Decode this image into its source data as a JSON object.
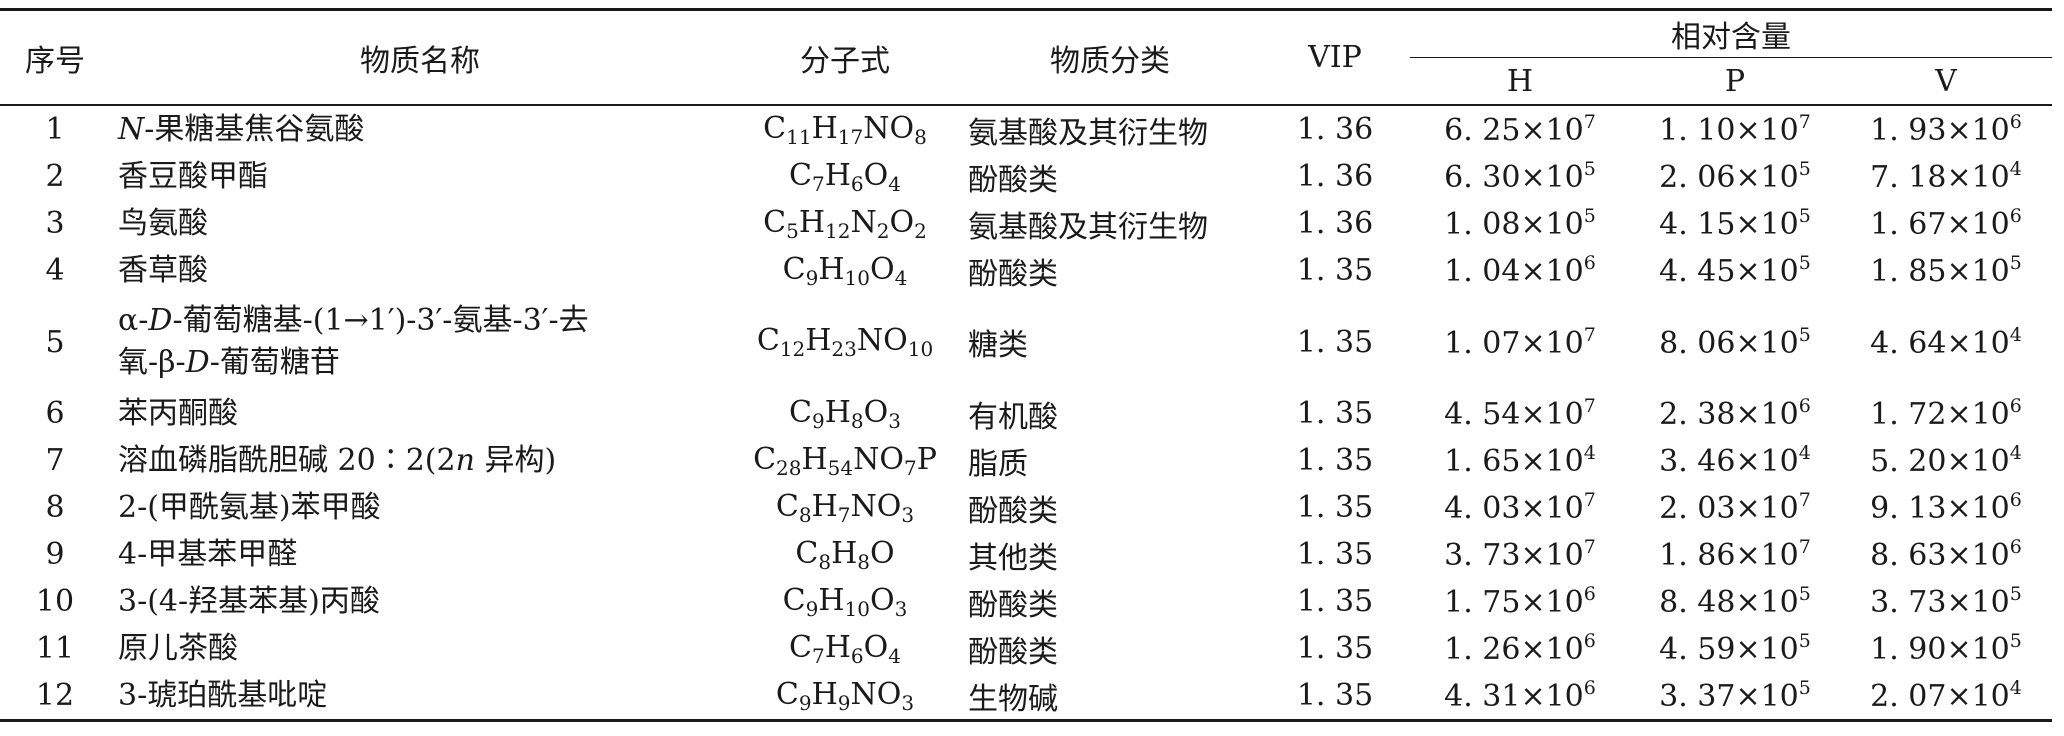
{
  "table": {
    "headers": {
      "no": "序号",
      "name": "物质名称",
      "formula": "分子式",
      "class": "物质分类",
      "vip": "VIP",
      "content_group": "相对含量",
      "h": "H",
      "p": "P",
      "v": "V"
    },
    "rows": [
      {
        "no": "1",
        "name_html": "<i>N</i>-果糖基焦谷氨酸",
        "formula_html": "C<sub>11</sub>H<sub>17</sub>NO<sub>8</sub>",
        "class": "氨基酸及其衍生物",
        "vip": "1. 36",
        "h_html": "6. 25×10<sup>7</sup>",
        "p_html": "1. 10×10<sup>7</sup>",
        "v_html": "1. 93×10<sup>6</sup>"
      },
      {
        "no": "2",
        "name_html": "香豆酸甲酯",
        "formula_html": "C<sub>7</sub>H<sub>6</sub>O<sub>4</sub>",
        "class": "酚酸类",
        "vip": "1. 36",
        "h_html": "6. 30×10<sup>5</sup>",
        "p_html": "2. 06×10<sup>5</sup>",
        "v_html": "7. 18×10<sup>4</sup>"
      },
      {
        "no": "3",
        "name_html": "鸟氨酸",
        "formula_html": "C<sub>5</sub>H<sub>12</sub>N<sub>2</sub>O<sub>2</sub>",
        "class": "氨基酸及其衍生物",
        "vip": "1. 36",
        "h_html": "1. 08×10<sup>5</sup>",
        "p_html": "4. 15×10<sup>5</sup>",
        "v_html": "1. 67×10<sup>6</sup>"
      },
      {
        "no": "4",
        "name_html": "香草酸",
        "formula_html": "C<sub>9</sub>H<sub>10</sub>O<sub>4</sub>",
        "class": "酚酸类",
        "vip": "1. 35",
        "h_html": "1. 04×10<sup>6</sup>",
        "p_html": "4. 45×10<sup>5</sup>",
        "v_html": "1. 85×10<sup>5</sup>"
      },
      {
        "no": "5",
        "name_html": "α-<i>D</i>-葡萄糖基-(1→1′)-3′-氨基-3′-去<br>氧-β-<i>D</i>-葡萄糖苷",
        "formula_html": "C<sub>12</sub>H<sub>23</sub>NO<sub>10</sub>",
        "class": "糖类",
        "vip": "1. 35",
        "h_html": "1. 07×10<sup>7</sup>",
        "p_html": "8. 06×10<sup>5</sup>",
        "v_html": "4. 64×10<sup>4</sup>",
        "tall": true
      },
      {
        "no": "6",
        "name_html": "苯丙酮酸",
        "formula_html": "C<sub>9</sub>H<sub>8</sub>O<sub>3</sub>",
        "class": "有机酸",
        "vip": "1. 35",
        "h_html": "4. 54×10<sup>7</sup>",
        "p_html": "2. 38×10<sup>6</sup>",
        "v_html": "1. 72×10<sup>6</sup>"
      },
      {
        "no": "7",
        "name_html": "溶血磷脂酰胆碱 20∶2(2<i>n</i> 异构)",
        "formula_html": "C<sub>28</sub>H<sub>54</sub>NO<sub>7</sub>P",
        "class": "脂质",
        "vip": "1. 35",
        "h_html": "1. 65×10<sup>4</sup>",
        "p_html": "3. 46×10<sup>4</sup>",
        "v_html": "5. 20×10<sup>4</sup>"
      },
      {
        "no": "8",
        "name_html": "2-(甲酰氨基)苯甲酸",
        "formula_html": "C<sub>8</sub>H<sub>7</sub>NO<sub>3</sub>",
        "class": "酚酸类",
        "vip": "1. 35",
        "h_html": "4. 03×10<sup>7</sup>",
        "p_html": "2. 03×10<sup>7</sup>",
        "v_html": "9. 13×10<sup>6</sup>"
      },
      {
        "no": "9",
        "name_html": "4-甲基苯甲醛",
        "formula_html": "C<sub>8</sub>H<sub>8</sub>O",
        "class": "其他类",
        "vip": "1. 35",
        "h_html": "3. 73×10<sup>7</sup>",
        "p_html": "1. 86×10<sup>7</sup>",
        "v_html": "8. 63×10<sup>6</sup>"
      },
      {
        "no": "10",
        "name_html": "3-(4-羟基苯基)丙酸",
        "formula_html": "C<sub>9</sub>H<sub>10</sub>O<sub>3</sub>",
        "class": "酚酸类",
        "vip": "1. 35",
        "h_html": "1. 75×10<sup>6</sup>",
        "p_html": "8. 48×10<sup>5</sup>",
        "v_html": "3. 73×10<sup>5</sup>"
      },
      {
        "no": "11",
        "name_html": "原儿茶酸",
        "formula_html": "C<sub>7</sub>H<sub>6</sub>O<sub>4</sub>",
        "class": "酚酸类",
        "vip": "1. 35",
        "h_html": "1. 26×10<sup>6</sup>",
        "p_html": "4. 59×10<sup>5</sup>",
        "v_html": "1. 90×10<sup>5</sup>"
      },
      {
        "no": "12",
        "name_html": "3-琥珀酰基吡啶",
        "formula_html": "C<sub>9</sub>H<sub>9</sub>NO<sub>3</sub>",
        "class": "生物碱",
        "vip": "1. 35",
        "h_html": "4. 31×10<sup>6</sup>",
        "p_html": "3. 37×10<sup>5</sup>",
        "v_html": "2. 07×10<sup>4</sup>"
      }
    ]
  }
}
